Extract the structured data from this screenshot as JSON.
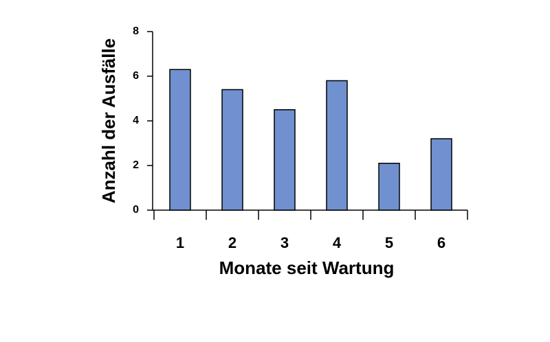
{
  "chart_data": {
    "type": "bar",
    "x_label": "Monate seit Wartung",
    "y_label": "Anzahl der Ausfälle",
    "categories": [
      "1",
      "2",
      "3",
      "4",
      "5",
      "6"
    ],
    "values": [
      6.3,
      5.4,
      4.5,
      5.8,
      2.1,
      3.2
    ],
    "color": "#7090d0",
    "ylim": [
      0,
      8
    ],
    "yticks": [
      0,
      2,
      4,
      6,
      8
    ],
    "grid": false
  }
}
